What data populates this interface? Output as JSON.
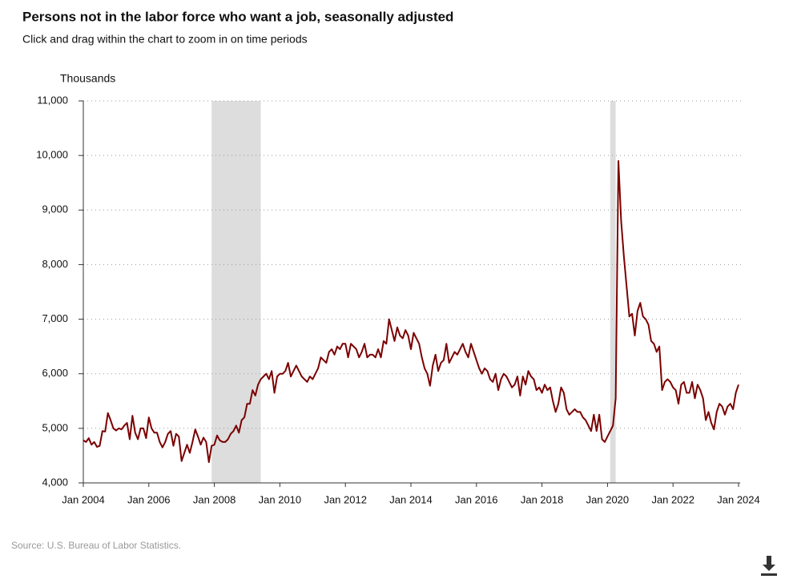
{
  "chart_data": {
    "type": "line",
    "title": "Persons not in the labor force who want a job, seasonally adjusted",
    "subtitle": "Click and drag within the chart to zoom in on time periods",
    "y_label": "Thousands",
    "source": "Source: U.S. Bureau of Labor Statistics.",
    "color": "#7b0000",
    "recession_color": "#dddddd",
    "recessions": [
      {
        "start": "2007-12",
        "end": "2009-06"
      },
      {
        "start": "2020-02",
        "end": "2020-04"
      }
    ],
    "xlim": [
      "2004-01",
      "2024-01"
    ],
    "xticks": [
      {
        "value": "2004-01",
        "label": "Jan 2004"
      },
      {
        "value": "2006-01",
        "label": "Jan 2006"
      },
      {
        "value": "2008-01",
        "label": "Jan 2008"
      },
      {
        "value": "2010-01",
        "label": "Jan 2010"
      },
      {
        "value": "2012-01",
        "label": "Jan 2012"
      },
      {
        "value": "2014-01",
        "label": "Jan 2014"
      },
      {
        "value": "2016-01",
        "label": "Jan 2016"
      },
      {
        "value": "2018-01",
        "label": "Jan 2018"
      },
      {
        "value": "2020-01",
        "label": "Jan 2020"
      },
      {
        "value": "2022-01",
        "label": "Jan 2022"
      },
      {
        "value": "2024-01",
        "label": "Jan 2024"
      }
    ],
    "ylim": [
      4000,
      11000
    ],
    "yticks": [
      {
        "value": 4000,
        "label": "4,000"
      },
      {
        "value": 5000,
        "label": "5,000"
      },
      {
        "value": 6000,
        "label": "6,000"
      },
      {
        "value": 7000,
        "label": "7,000"
      },
      {
        "value": 8000,
        "label": "8,000"
      },
      {
        "value": 9000,
        "label": "9,000"
      },
      {
        "value": 10000,
        "label": "10,000"
      },
      {
        "value": 11000,
        "label": "11,000"
      }
    ],
    "grid": true,
    "x": [
      "2004-01",
      "2004-02",
      "2004-03",
      "2004-04",
      "2004-05",
      "2004-06",
      "2004-07",
      "2004-08",
      "2004-09",
      "2004-10",
      "2004-11",
      "2004-12",
      "2005-01",
      "2005-02",
      "2005-03",
      "2005-04",
      "2005-05",
      "2005-06",
      "2005-07",
      "2005-08",
      "2005-09",
      "2005-10",
      "2005-11",
      "2005-12",
      "2006-01",
      "2006-02",
      "2006-03",
      "2006-04",
      "2006-05",
      "2006-06",
      "2006-07",
      "2006-08",
      "2006-09",
      "2006-10",
      "2006-11",
      "2006-12",
      "2007-01",
      "2007-02",
      "2007-03",
      "2007-04",
      "2007-05",
      "2007-06",
      "2007-07",
      "2007-08",
      "2007-09",
      "2007-10",
      "2007-11",
      "2007-12",
      "2008-01",
      "2008-02",
      "2008-03",
      "2008-04",
      "2008-05",
      "2008-06",
      "2008-07",
      "2008-08",
      "2008-09",
      "2008-10",
      "2008-11",
      "2008-12",
      "2009-01",
      "2009-02",
      "2009-03",
      "2009-04",
      "2009-05",
      "2009-06",
      "2009-07",
      "2009-08",
      "2009-09",
      "2009-10",
      "2009-11",
      "2009-12",
      "2010-01",
      "2010-02",
      "2010-03",
      "2010-04",
      "2010-05",
      "2010-06",
      "2010-07",
      "2010-08",
      "2010-09",
      "2010-10",
      "2010-11",
      "2010-12",
      "2011-01",
      "2011-02",
      "2011-03",
      "2011-04",
      "2011-05",
      "2011-06",
      "2011-07",
      "2011-08",
      "2011-09",
      "2011-10",
      "2011-11",
      "2011-12",
      "2012-01",
      "2012-02",
      "2012-03",
      "2012-04",
      "2012-05",
      "2012-06",
      "2012-07",
      "2012-08",
      "2012-09",
      "2012-10",
      "2012-11",
      "2012-12",
      "2013-01",
      "2013-02",
      "2013-03",
      "2013-04",
      "2013-05",
      "2013-06",
      "2013-07",
      "2013-08",
      "2013-09",
      "2013-10",
      "2013-11",
      "2013-12",
      "2014-01",
      "2014-02",
      "2014-03",
      "2014-04",
      "2014-05",
      "2014-06",
      "2014-07",
      "2014-08",
      "2014-09",
      "2014-10",
      "2014-11",
      "2014-12",
      "2015-01",
      "2015-02",
      "2015-03",
      "2015-04",
      "2015-05",
      "2015-06",
      "2015-07",
      "2015-08",
      "2015-09",
      "2015-10",
      "2015-11",
      "2015-12",
      "2016-01",
      "2016-02",
      "2016-03",
      "2016-04",
      "2016-05",
      "2016-06",
      "2016-07",
      "2016-08",
      "2016-09",
      "2016-10",
      "2016-11",
      "2016-12",
      "2017-01",
      "2017-02",
      "2017-03",
      "2017-04",
      "2017-05",
      "2017-06",
      "2017-07",
      "2017-08",
      "2017-09",
      "2017-10",
      "2017-11",
      "2017-12",
      "2018-01",
      "2018-02",
      "2018-03",
      "2018-04",
      "2018-05",
      "2018-06",
      "2018-07",
      "2018-08",
      "2018-09",
      "2018-10",
      "2018-11",
      "2018-12",
      "2019-01",
      "2019-02",
      "2019-03",
      "2019-04",
      "2019-05",
      "2019-06",
      "2019-07",
      "2019-08",
      "2019-09",
      "2019-10",
      "2019-11",
      "2019-12",
      "2020-01",
      "2020-02",
      "2020-03",
      "2020-04",
      "2020-05",
      "2020-06",
      "2020-07",
      "2020-08",
      "2020-09",
      "2020-10",
      "2020-11",
      "2020-12",
      "2021-01",
      "2021-02",
      "2021-03",
      "2021-04",
      "2021-05",
      "2021-06",
      "2021-07",
      "2021-08",
      "2021-09",
      "2021-10",
      "2021-11",
      "2021-12",
      "2022-01",
      "2022-02",
      "2022-03",
      "2022-04",
      "2022-05",
      "2022-06",
      "2022-07",
      "2022-08",
      "2022-09",
      "2022-10",
      "2022-11",
      "2022-12",
      "2023-01",
      "2023-02",
      "2023-03",
      "2023-04",
      "2023-05",
      "2023-06",
      "2023-07",
      "2023-08",
      "2023-09",
      "2023-10",
      "2023-11",
      "2023-12",
      "2024-01"
    ],
    "values": [
      4780,
      4750,
      4820,
      4700,
      4750,
      4660,
      4680,
      4950,
      4940,
      5280,
      5150,
      5000,
      4960,
      5000,
      4980,
      5050,
      5100,
      4800,
      5230,
      4920,
      4800,
      5000,
      5000,
      4820,
      5200,
      5000,
      4920,
      4920,
      4750,
      4650,
      4750,
      4900,
      4950,
      4680,
      4900,
      4850,
      4400,
      4550,
      4700,
      4550,
      4750,
      4980,
      4850,
      4700,
      4830,
      4750,
      4380,
      4680,
      4700,
      4870,
      4780,
      4750,
      4750,
      4800,
      4900,
      4950,
      5050,
      4920,
      5150,
      5200,
      5450,
      5450,
      5700,
      5600,
      5800,
      5900,
      5950,
      6000,
      5900,
      6050,
      5650,
      5950,
      6000,
      6000,
      6050,
      6200,
      5950,
      6050,
      6150,
      6050,
      5950,
      5900,
      5850,
      5950,
      5900,
      6000,
      6100,
      6300,
      6250,
      6200,
      6400,
      6450,
      6350,
      6500,
      6450,
      6550,
      6550,
      6300,
      6550,
      6500,
      6450,
      6300,
      6400,
      6550,
      6300,
      6350,
      6350,
      6300,
      6450,
      6300,
      6600,
      6550,
      7000,
      6800,
      6600,
      6850,
      6700,
      6650,
      6800,
      6700,
      6450,
      6750,
      6650,
      6550,
      6300,
      6100,
      6000,
      5780,
      6150,
      6350,
      6050,
      6200,
      6250,
      6550,
      6200,
      6300,
      6400,
      6350,
      6450,
      6550,
      6400,
      6300,
      6550,
      6400,
      6250,
      6100,
      6000,
      6100,
      6050,
      5900,
      5850,
      6000,
      5700,
      5900,
      6000,
      5950,
      5850,
      5750,
      5800,
      5950,
      5600,
      5950,
      5800,
      6050,
      5950,
      5900,
      5700,
      5750,
      5650,
      5800,
      5700,
      5750,
      5500,
      5300,
      5450,
      5750,
      5650,
      5350,
      5250,
      5300,
      5350,
      5300,
      5300,
      5200,
      5150,
      5050,
      4950,
      5250,
      4950,
      5250,
      4800,
      4750,
      4850,
      4950,
      5050,
      5550,
      9900,
      8800,
      8150,
      7600,
      7050,
      7100,
      6700,
      7150,
      7300,
      7050,
      7000,
      6900,
      6600,
      6550,
      6400,
      6500,
      5700,
      5850,
      5900,
      5850,
      5750,
      5700,
      5450,
      5800,
      5850,
      5650,
      5650,
      5850,
      5550,
      5800,
      5700,
      5550,
      5150,
      5300,
      5100,
      4980,
      5300,
      5450,
      5400,
      5250,
      5400,
      5450,
      5350,
      5650,
      5800
    ]
  }
}
